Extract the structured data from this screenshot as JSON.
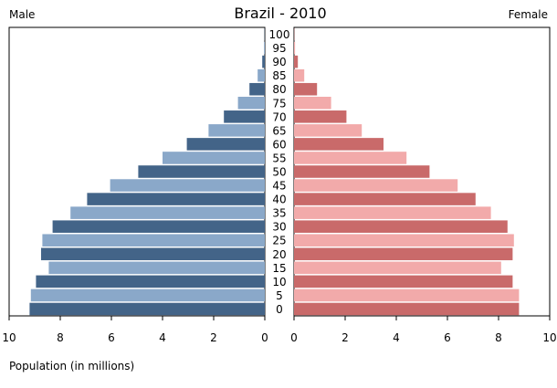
{
  "chart_data": {
    "type": "bar",
    "title": "Brazil - 2010",
    "left_label": "Male",
    "right_label": "Female",
    "xlabel": "Population (in millions)",
    "age_groups": [
      "0",
      "5",
      "10",
      "15",
      "20",
      "25",
      "30",
      "35",
      "40",
      "45",
      "50",
      "55",
      "60",
      "65",
      "70",
      "75",
      "80",
      "85",
      "90",
      "95",
      "100"
    ],
    "series": [
      {
        "name": "Male",
        "values": [
          9.2,
          9.15,
          8.95,
          8.45,
          8.75,
          8.7,
          8.3,
          7.6,
          6.95,
          6.05,
          4.95,
          4.0,
          3.05,
          2.2,
          1.6,
          1.05,
          0.6,
          0.28,
          0.1,
          0.03,
          0.01
        ]
      },
      {
        "name": "Female",
        "values": [
          8.8,
          8.8,
          8.55,
          8.1,
          8.55,
          8.6,
          8.35,
          7.7,
          7.1,
          6.4,
          5.3,
          4.4,
          3.5,
          2.65,
          2.05,
          1.45,
          0.9,
          0.4,
          0.15,
          0.04,
          0.01
        ]
      }
    ],
    "xlim": [
      0,
      10
    ],
    "x_ticks": [
      0,
      2,
      4,
      6,
      8,
      10
    ],
    "colors": {
      "male_dark": "#436488",
      "male_light": "#8aa8c9",
      "female_dark": "#c96a6a",
      "female_light": "#f2aaaa"
    }
  }
}
